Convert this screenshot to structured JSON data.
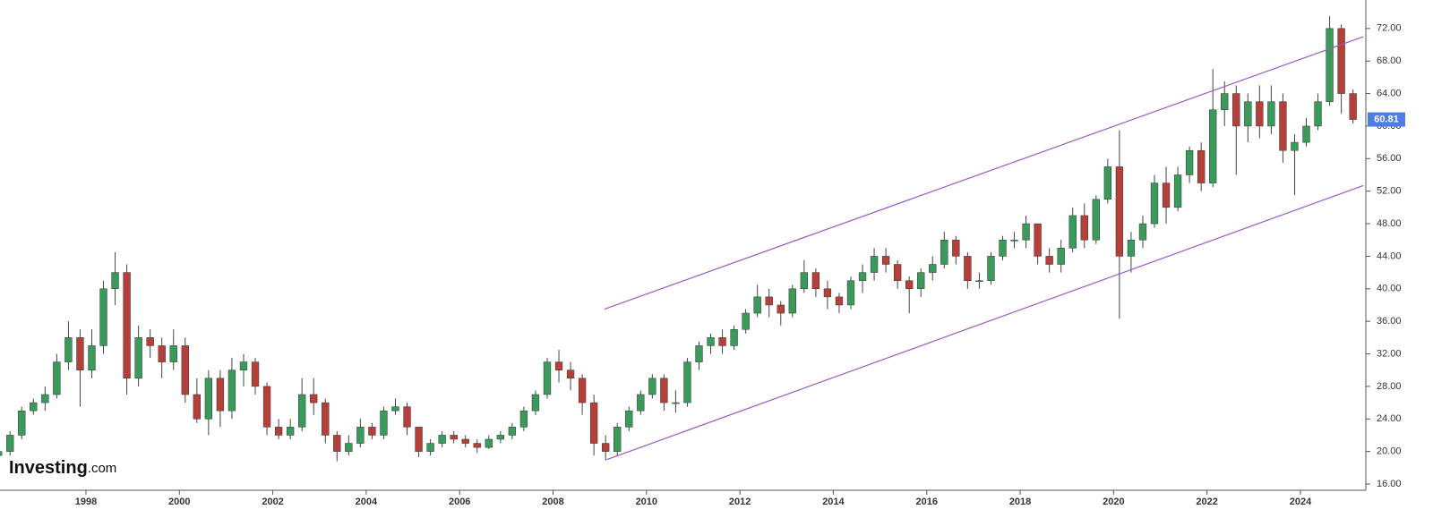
{
  "chart_data": {
    "type": "candlestick",
    "brand": {
      "name": "Investing",
      "suffix": ".com"
    },
    "x": [
      "1996-01",
      "1996-04",
      "1996-07",
      "1996-10",
      "1997-01",
      "1997-04",
      "1997-07",
      "1997-10",
      "1998-01",
      "1998-04",
      "1998-07",
      "1998-10",
      "1999-01",
      "1999-04",
      "1999-07",
      "1999-10",
      "2000-01",
      "2000-04",
      "2000-07",
      "2000-10",
      "2001-01",
      "2001-04",
      "2001-07",
      "2001-10",
      "2002-01",
      "2002-04",
      "2002-07",
      "2002-10",
      "2003-01",
      "2003-04",
      "2003-07",
      "2003-10",
      "2004-01",
      "2004-04",
      "2004-07",
      "2004-10",
      "2005-01",
      "2005-04",
      "2005-07",
      "2005-10",
      "2006-01",
      "2006-04",
      "2006-07",
      "2006-10",
      "2007-01",
      "2007-04",
      "2007-07",
      "2007-10",
      "2008-01",
      "2008-04",
      "2008-07",
      "2008-10",
      "2009-01",
      "2009-04",
      "2009-07",
      "2009-10",
      "2010-01",
      "2010-04",
      "2010-07",
      "2010-10",
      "2011-01",
      "2011-04",
      "2011-07",
      "2011-10",
      "2012-01",
      "2012-04",
      "2012-07",
      "2012-10",
      "2013-01",
      "2013-04",
      "2013-07",
      "2013-10",
      "2014-01",
      "2014-04",
      "2014-07",
      "2014-10",
      "2015-01",
      "2015-04",
      "2015-07",
      "2015-10",
      "2016-01",
      "2016-04",
      "2016-07",
      "2016-10",
      "2017-01",
      "2017-04",
      "2017-07",
      "2017-10",
      "2018-01",
      "2018-04",
      "2018-07",
      "2018-10",
      "2019-01",
      "2019-04",
      "2019-07",
      "2019-10",
      "2020-01",
      "2020-04",
      "2020-07",
      "2020-10",
      "2021-01",
      "2021-04",
      "2021-07",
      "2021-10",
      "2022-01",
      "2022-04",
      "2022-07",
      "2022-10",
      "2023-01",
      "2023-04",
      "2023-07",
      "2023-10",
      "2024-01",
      "2024-04",
      "2024-07",
      "2024-10",
      "2025-01"
    ],
    "open": [
      19.5,
      20,
      22,
      25,
      26,
      27,
      31,
      34,
      30,
      33,
      40,
      42,
      29,
      34,
      33,
      31,
      33,
      27,
      24,
      29,
      25,
      30,
      31,
      28,
      23,
      22,
      23,
      27,
      26,
      22,
      20,
      21,
      23,
      22,
      25,
      25.5,
      23,
      20,
      21,
      22,
      21.5,
      21,
      20.5,
      21.5,
      22,
      23,
      25,
      27,
      31,
      30,
      29,
      26,
      21,
      20,
      23,
      25,
      27,
      29,
      26,
      26,
      31,
      33,
      34,
      33,
      35,
      37,
      39,
      38,
      37,
      40,
      42,
      40,
      39,
      38,
      41,
      42,
      44,
      43,
      41,
      40,
      42,
      43,
      46,
      44,
      41,
      41,
      44,
      46,
      46,
      48,
      44,
      43,
      45,
      49,
      46,
      51,
      55,
      44,
      46,
      48,
      53,
      50,
      54,
      57,
      53,
      62,
      64,
      60,
      63,
      60,
      63,
      57,
      58,
      60,
      63,
      72,
      64
    ],
    "high": [
      21,
      22.5,
      25.5,
      26.5,
      28,
      32,
      36,
      35,
      35,
      41,
      44.5,
      43,
      35.5,
      35,
      34,
      35,
      34,
      29,
      30,
      30,
      31.5,
      32,
      31.5,
      28.5,
      24,
      24,
      29,
      29,
      26.5,
      22.5,
      22,
      24,
      23.5,
      25.5,
      26.5,
      26,
      23,
      21.5,
      22.5,
      22.5,
      22,
      21.5,
      22,
      22.5,
      23.5,
      25.5,
      27.5,
      31.5,
      32.5,
      31,
      29.5,
      27,
      22,
      23.5,
      25.5,
      27.5,
      29.5,
      29.5,
      27.5,
      31.5,
      33.5,
      34.5,
      35,
      35.5,
      37.5,
      40.5,
      40,
      38.5,
      40.5,
      43.5,
      42.5,
      41,
      39.5,
      41.5,
      43,
      45,
      45,
      43.5,
      41.5,
      42.5,
      44,
      47,
      46.5,
      44.5,
      42,
      44.5,
      46.5,
      47,
      49,
      48,
      45,
      46,
      50,
      50.5,
      51.5,
      56,
      59.5,
      47,
      49,
      54,
      55,
      55,
      57.5,
      58,
      67,
      65.5,
      65,
      64,
      65,
      65,
      64,
      59,
      61,
      64,
      73.5,
      72.5,
      64.5
    ],
    "low": [
      19,
      19.5,
      21.5,
      24.5,
      25,
      26.5,
      30,
      25.5,
      29,
      32,
      38,
      27,
      28,
      31.5,
      29,
      30,
      26,
      23.5,
      22,
      23,
      24,
      28,
      27,
      22,
      21.5,
      21.5,
      22.5,
      24.5,
      21,
      18.8,
      19.5,
      20.5,
      21.5,
      21.5,
      24.5,
      22,
      19.3,
      19.5,
      20.5,
      21,
      20.5,
      19.8,
      20.3,
      21,
      21.5,
      22.5,
      24.5,
      26.5,
      28.5,
      27.5,
      24.5,
      19.5,
      18.9,
      19.5,
      22.5,
      24.5,
      26.5,
      25,
      24.8,
      25.5,
      30,
      32,
      32,
      32.5,
      34.5,
      36.5,
      36.5,
      35.5,
      36.5,
      39.5,
      39,
      37.5,
      37,
      37.5,
      39.5,
      41,
      42,
      40,
      37,
      39,
      41,
      42.5,
      43,
      40,
      40,
      40.5,
      43.5,
      45,
      45,
      43,
      42,
      42,
      44.5,
      45,
      45.5,
      50.5,
      36.3,
      42,
      45,
      47.5,
      48,
      49.5,
      53,
      52,
      52.5,
      60,
      54,
      58,
      58.5,
      59,
      55.5,
      51.5,
      57.5,
      59.5,
      62.5,
      61.5,
      60.3
    ],
    "close": [
      20,
      22,
      25,
      26,
      27,
      31,
      34,
      30,
      33,
      40,
      42,
      29,
      34,
      33,
      31,
      33,
      27,
      24,
      29,
      25,
      30,
      31,
      28,
      23,
      22,
      23,
      27,
      26,
      22,
      20,
      21,
      23,
      22,
      25,
      25.5,
      23,
      20,
      21,
      22,
      21.5,
      21,
      20.5,
      21.5,
      22,
      23,
      25,
      27,
      31,
      30,
      29,
      26,
      21,
      20,
      23,
      25,
      27,
      29,
      26,
      26,
      31,
      33,
      34,
      33,
      35,
      37,
      39,
      38,
      37,
      40,
      42,
      40,
      39,
      38,
      41,
      42,
      44,
      43,
      41,
      40,
      42,
      43,
      46,
      44,
      41,
      41,
      44,
      46,
      46,
      48,
      44,
      43,
      45,
      49,
      46,
      51,
      55,
      44,
      46,
      48,
      53,
      50,
      54,
      57,
      53,
      62,
      64,
      60,
      63,
      60,
      63,
      57,
      58,
      60,
      63,
      72,
      64,
      60.81
    ],
    "up_color": "#3a9a5b",
    "down_color": "#b5403a",
    "last_price": 60.81,
    "last_price_color": "#4d7ee8",
    "channel_lines": {
      "color": "#9b59c9",
      "upper": {
        "x": [
          2009.1,
          2025.35
        ],
        "y": [
          37.5,
          71
        ]
      },
      "lower": {
        "x": [
          2009.15,
          2025.35
        ],
        "y": [
          19,
          52.7
        ]
      }
    },
    "xlim": [
      1996.16,
      2025.4
    ],
    "xticks": [
      1998,
      2000,
      2002,
      2004,
      2006,
      2008,
      2010,
      2012,
      2014,
      2016,
      2018,
      2020,
      2022,
      2024
    ],
    "ylim": [
      15.23,
      75.5
    ],
    "yticks": [
      {
        "value": 16,
        "label": "16.00"
      },
      {
        "value": 20,
        "label": "20.00"
      },
      {
        "value": 24,
        "label": "24.00"
      },
      {
        "value": 28,
        "label": "28.00"
      },
      {
        "value": 32,
        "label": "32.00"
      },
      {
        "value": 36,
        "label": "36.00"
      },
      {
        "value": 40,
        "label": "40.00"
      },
      {
        "value": 44,
        "label": "44.00"
      },
      {
        "value": 48,
        "label": "48.00"
      },
      {
        "value": 52,
        "label": "52.00"
      },
      {
        "value": 56,
        "label": "56.00"
      },
      {
        "value": 60,
        "label": "60.00"
      },
      {
        "value": 64,
        "label": "64.00"
      },
      {
        "value": 68,
        "label": "68.00"
      },
      {
        "value": 72,
        "label": "72.00"
      }
    ]
  }
}
